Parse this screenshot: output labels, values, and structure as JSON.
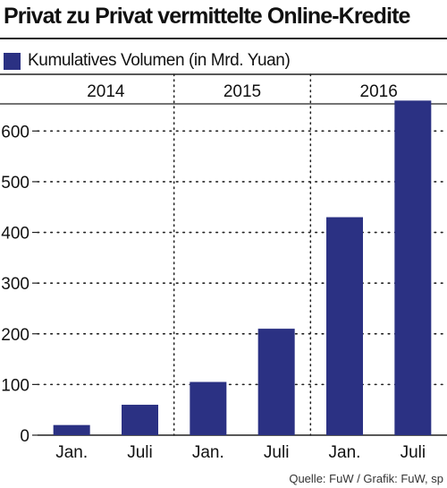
{
  "colors": {
    "bar": "#2b3183",
    "text": "#111111",
    "grid": "#222222"
  },
  "chart_data": {
    "type": "bar",
    "title": "Privat zu Privat vermittelte Online-Kredite",
    "legend": "Kumulatives Volumen (in Mrd. Yuan)",
    "year_labels": [
      "2014",
      "2015",
      "2016"
    ],
    "categories": [
      "Jan.",
      "Juli",
      "Jan.",
      "Juli",
      "Jan.",
      "Juli"
    ],
    "series": [
      {
        "name": "Kumulatives Volumen (in Mrd. Yuan)",
        "values": [
          20,
          60,
          105,
          210,
          430,
          660
        ]
      }
    ],
    "ylim": [
      0,
      700
    ],
    "yticks": [
      0,
      100,
      200,
      300,
      400,
      500,
      600
    ],
    "grid": true,
    "source": "Quelle: FuW / Grafik: FuW, sp"
  }
}
